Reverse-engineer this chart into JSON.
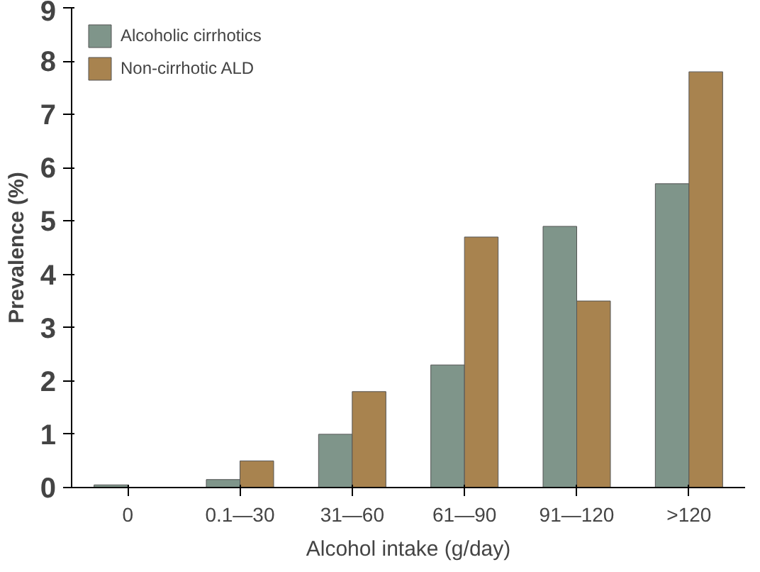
{
  "chart_data": {
    "type": "bar",
    "xlabel": "Alcohol intake (g/day)",
    "ylabel": "Prevalence (%)",
    "categories": [
      "0",
      "0.1—30",
      "31—60",
      "61—90",
      "91—120",
      ">120"
    ],
    "series": [
      {
        "name": "Alcoholic cirrhotics",
        "color": "#7f958a",
        "values": [
          0.05,
          0.15,
          1.0,
          2.3,
          4.9,
          5.7
        ]
      },
      {
        "name": "Non-cirrhotic ALD",
        "color": "#a8834f",
        "values": [
          null,
          0.5,
          1.8,
          4.7,
          3.5,
          7.8
        ]
      }
    ],
    "ylim": [
      0,
      9
    ],
    "yticks": [
      0,
      1,
      2,
      3,
      4,
      5,
      6,
      7,
      8,
      9
    ],
    "grid": false,
    "legend": "top left"
  }
}
